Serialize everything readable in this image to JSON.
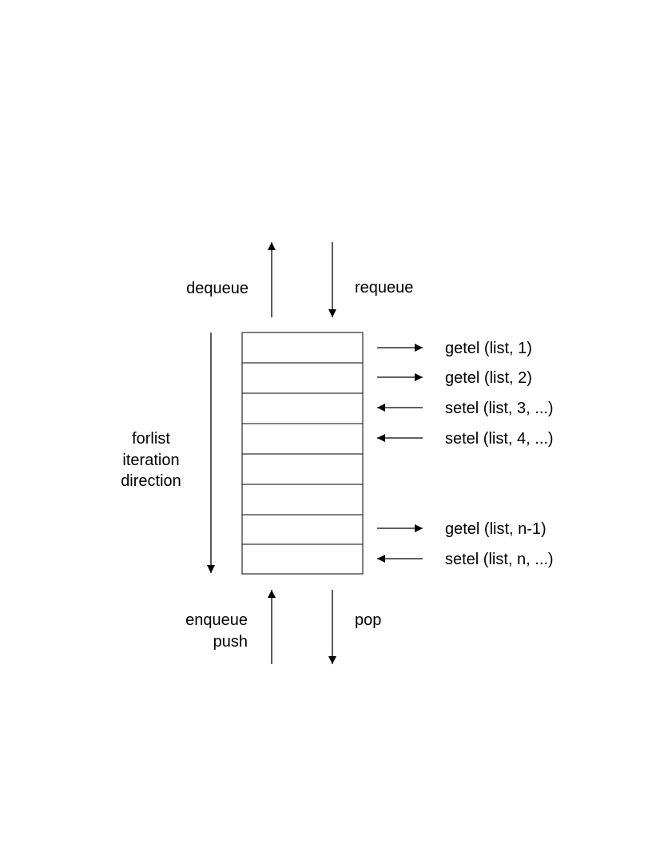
{
  "ops": {
    "dequeue": "dequeue",
    "requeue": "requeue",
    "enqueue": "enqueue",
    "push": "push",
    "pop": "pop"
  },
  "forlist": {
    "line1": "forlist",
    "line2": "iteration",
    "line3": "direction"
  },
  "list_cells": 8,
  "element_ops": [
    {
      "label": "getel (list, 1)",
      "direction": "out",
      "cell": 1
    },
    {
      "label": "getel (list, 2)",
      "direction": "out",
      "cell": 2
    },
    {
      "label": "setel (list, 3, ...)",
      "direction": "in",
      "cell": 3
    },
    {
      "label": "setel (list, 4, ...)",
      "direction": "in",
      "cell": 4
    },
    {
      "label": "getel (list, n-1)",
      "direction": "out",
      "cell": 7
    },
    {
      "label": "setel (list, n, ...)",
      "direction": "in",
      "cell": 8
    }
  ],
  "colors": {
    "stroke": "#000000",
    "background": "#ffffff"
  }
}
